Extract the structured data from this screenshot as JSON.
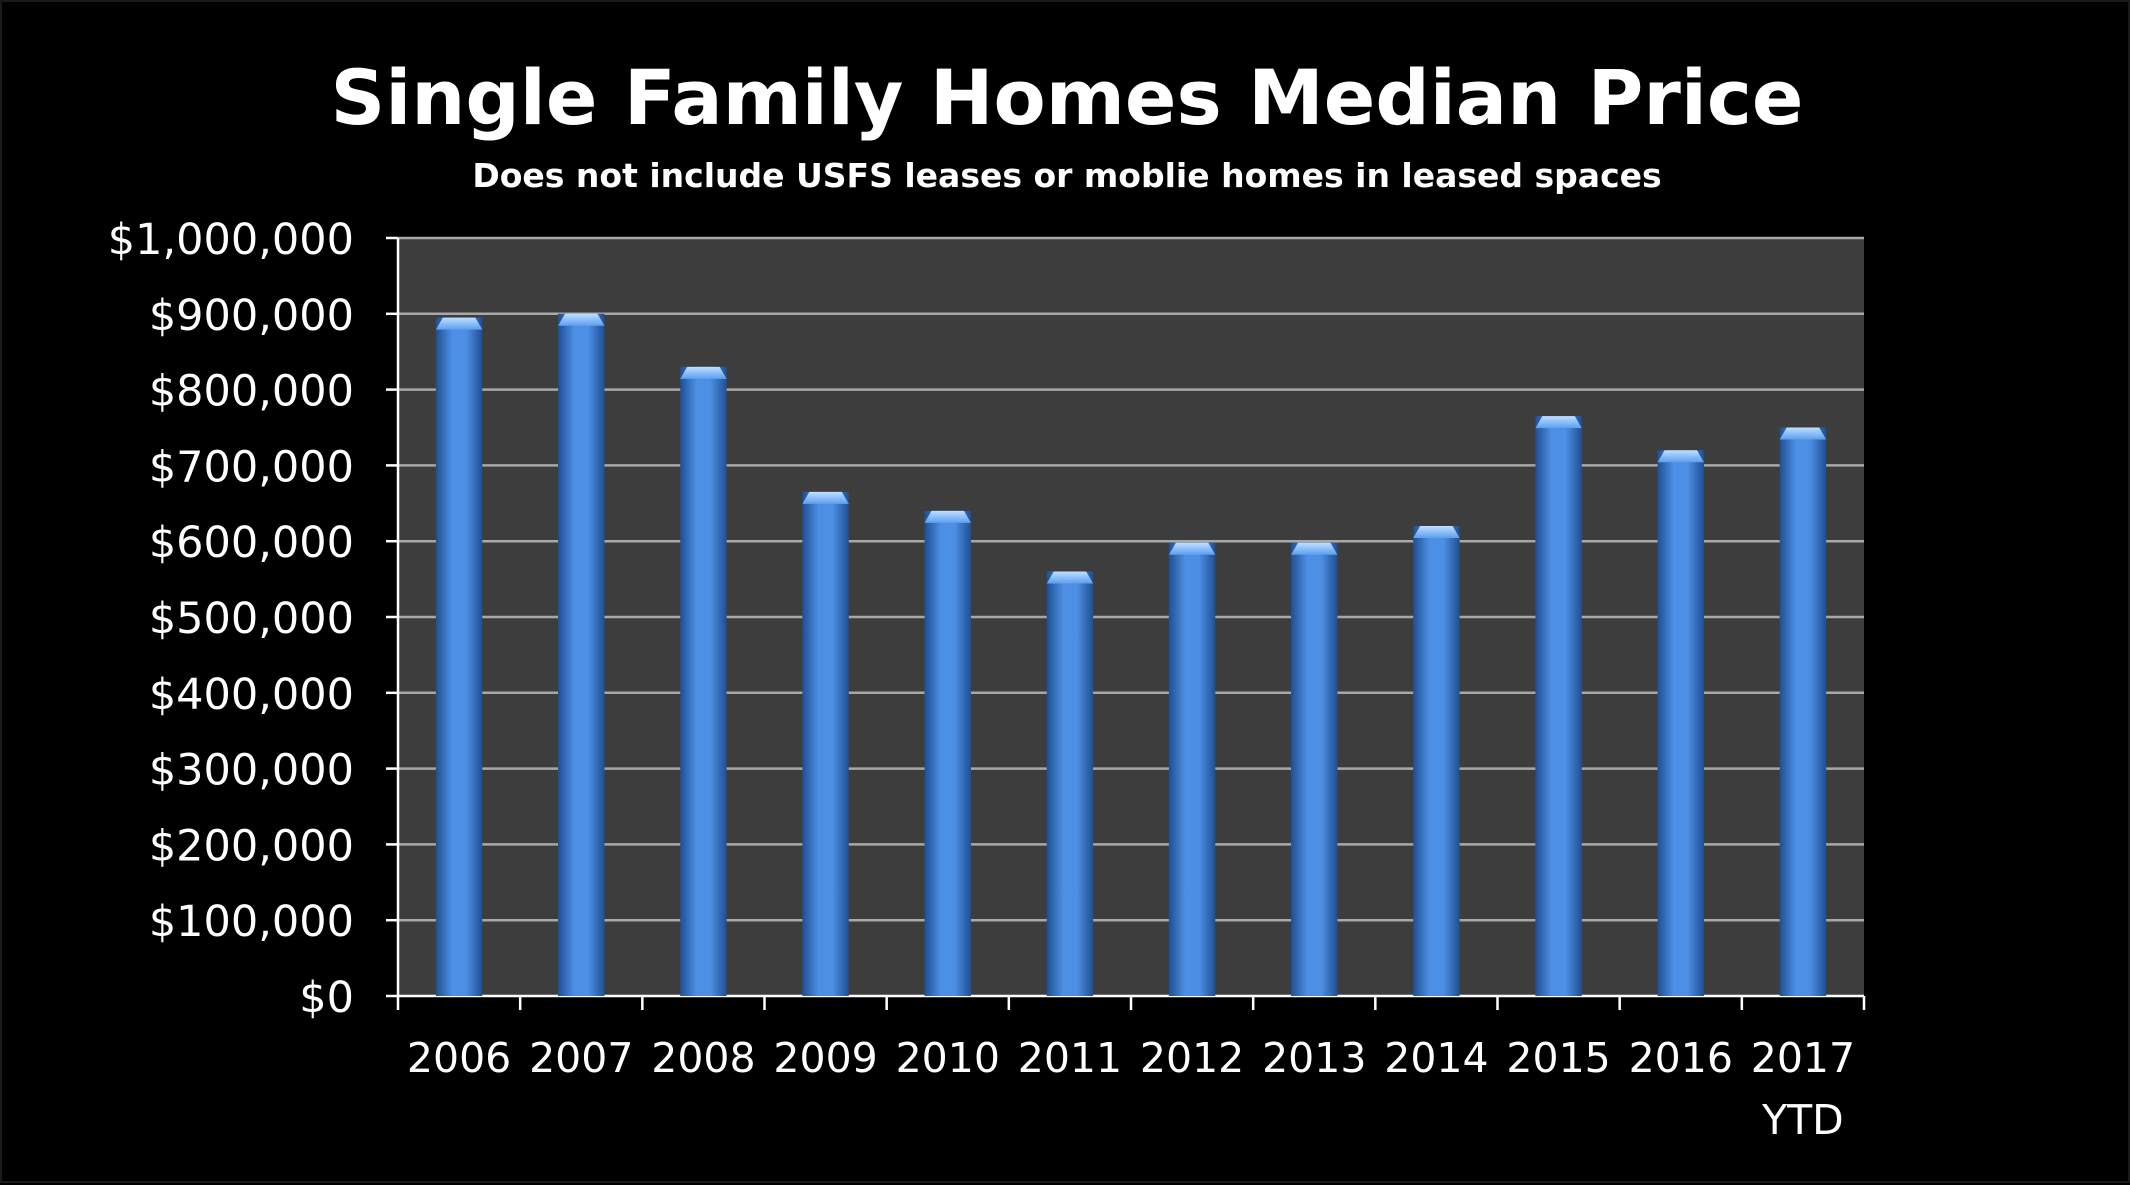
{
  "colors": {
    "background": "#000000",
    "plot_area": "#3d3d3d",
    "gridline": "#a8a8a8",
    "bar": "#3f80d6",
    "text": "#ffffff"
  },
  "chart_data": {
    "type": "bar",
    "title": "Single Family Homes Median Price",
    "subtitle": "Does not include USFS leases or moblie homes in leased spaces",
    "categories": [
      "2006",
      "2007",
      "2008",
      "2009",
      "2010",
      "2011",
      "2012",
      "2013",
      "2014",
      "2015",
      "2016",
      "2017\nYTD"
    ],
    "values": [
      895000,
      900000,
      830000,
      665000,
      640000,
      560000,
      598000,
      598000,
      620000,
      765000,
      720000,
      750000
    ],
    "ylim": [
      0,
      1000000
    ],
    "yticks": [
      "$0",
      "$100,000",
      "$200,000",
      "$300,000",
      "$400,000",
      "$500,000",
      "$600,000",
      "$700,000",
      "$800,000",
      "$900,000",
      "$1,000,000"
    ],
    "grid": true,
    "legend": "none"
  }
}
